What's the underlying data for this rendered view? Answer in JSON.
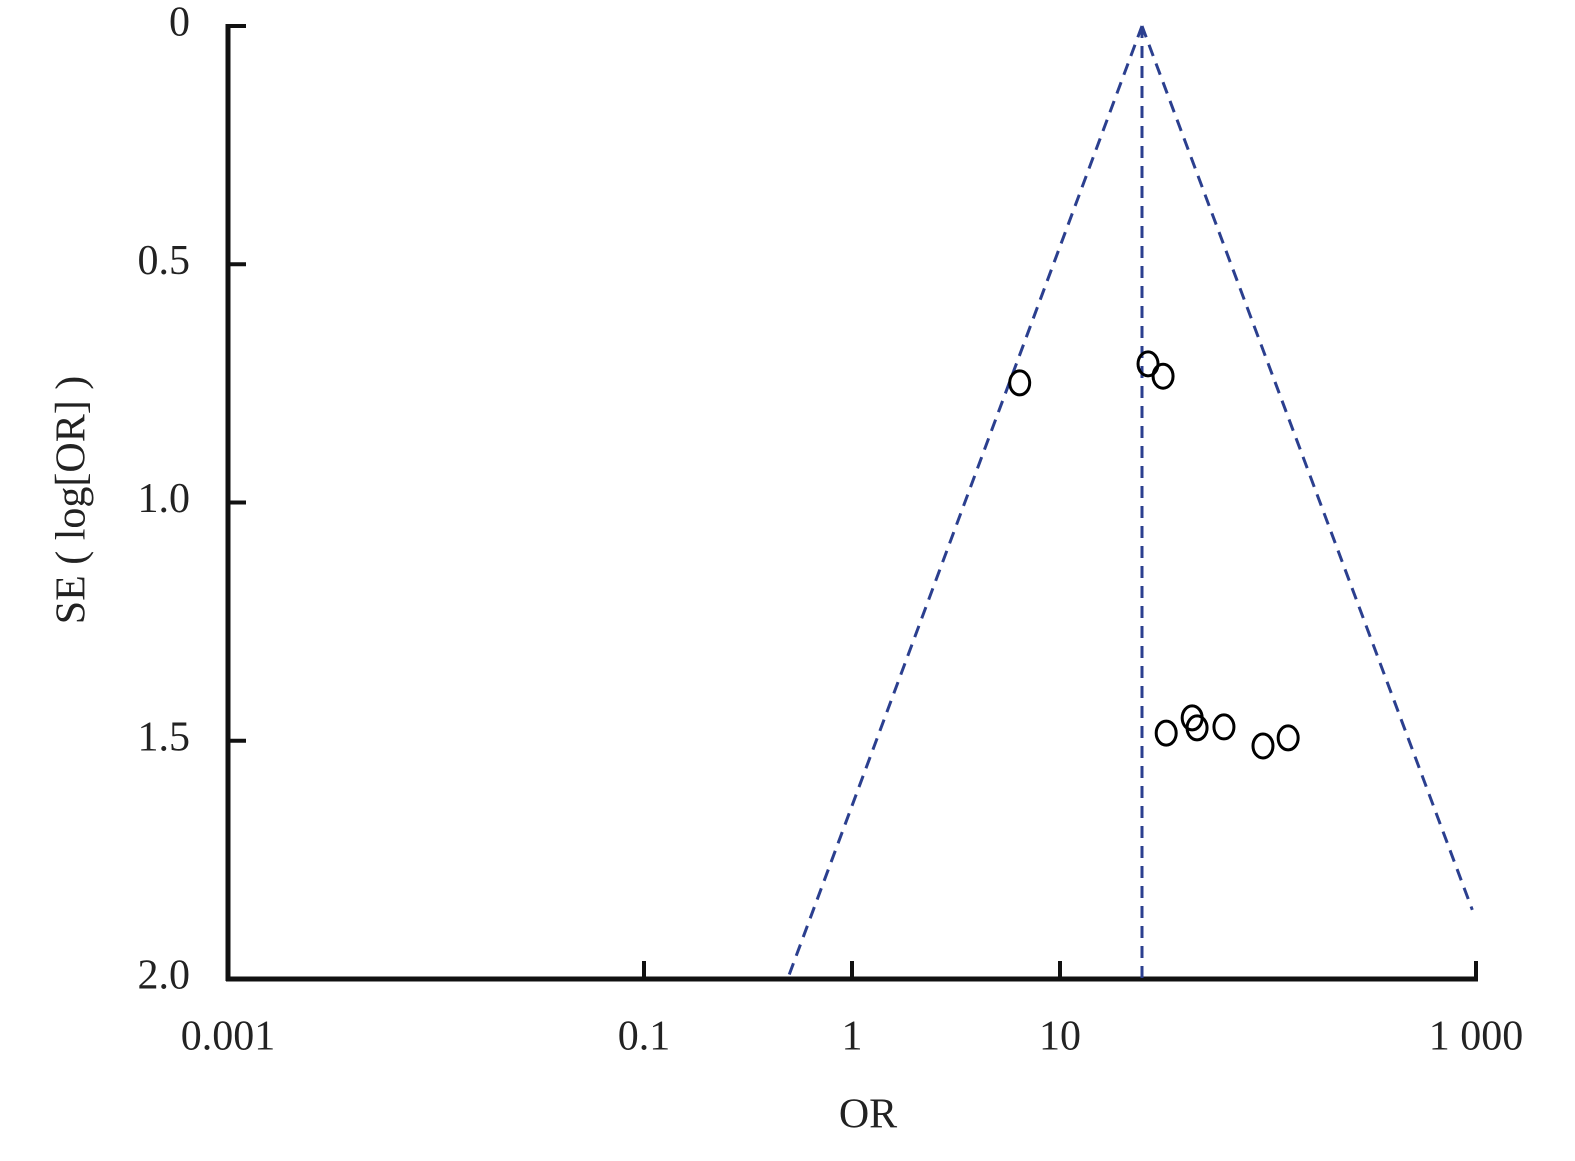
{
  "chart_data": {
    "type": "scatter",
    "x_label": "OR",
    "y_label": "SE ( log[OR] )",
    "x_scale": "log",
    "y_inverted": true,
    "xlim": [
      0.001,
      1000
    ],
    "ylim": [
      0,
      2.0
    ],
    "xticks": [
      0.001,
      0.1,
      1,
      10,
      {
        "value": 1000,
        "label": "1 000"
      }
    ],
    "yticks": [
      0,
      0.5,
      {
        "value": 1,
        "label": "1.0"
      },
      1.5,
      {
        "value": 2,
        "label": "2.0"
      }
    ],
    "series": [
      {
        "marker": "open-circle",
        "color": "#000000",
        "x": [
          6.4,
          26.5,
          31.3,
          32.4,
          43.2,
          45.6,
          61.4,
          94.6,
          125
        ],
        "values": [
          0.749,
          0.709,
          0.735,
          1.484,
          1.452,
          1.473,
          1.471,
          1.511,
          1.494
        ]
      },
      {
        "line": "dashed",
        "color": "#2b3f8f",
        "x": [
          24.8,
          0.49
        ],
        "values": [
          0,
          2.0
        ]
      },
      {
        "line": "dashed",
        "color": "#2b3f8f",
        "x": [
          24.8,
          960
        ],
        "values": [
          0,
          1.855
        ]
      },
      {
        "line": "dashed",
        "color": "#2b3f8f",
        "x": [
          24.8,
          24.8
        ],
        "values": [
          0,
          2.0
        ]
      }
    ]
  }
}
